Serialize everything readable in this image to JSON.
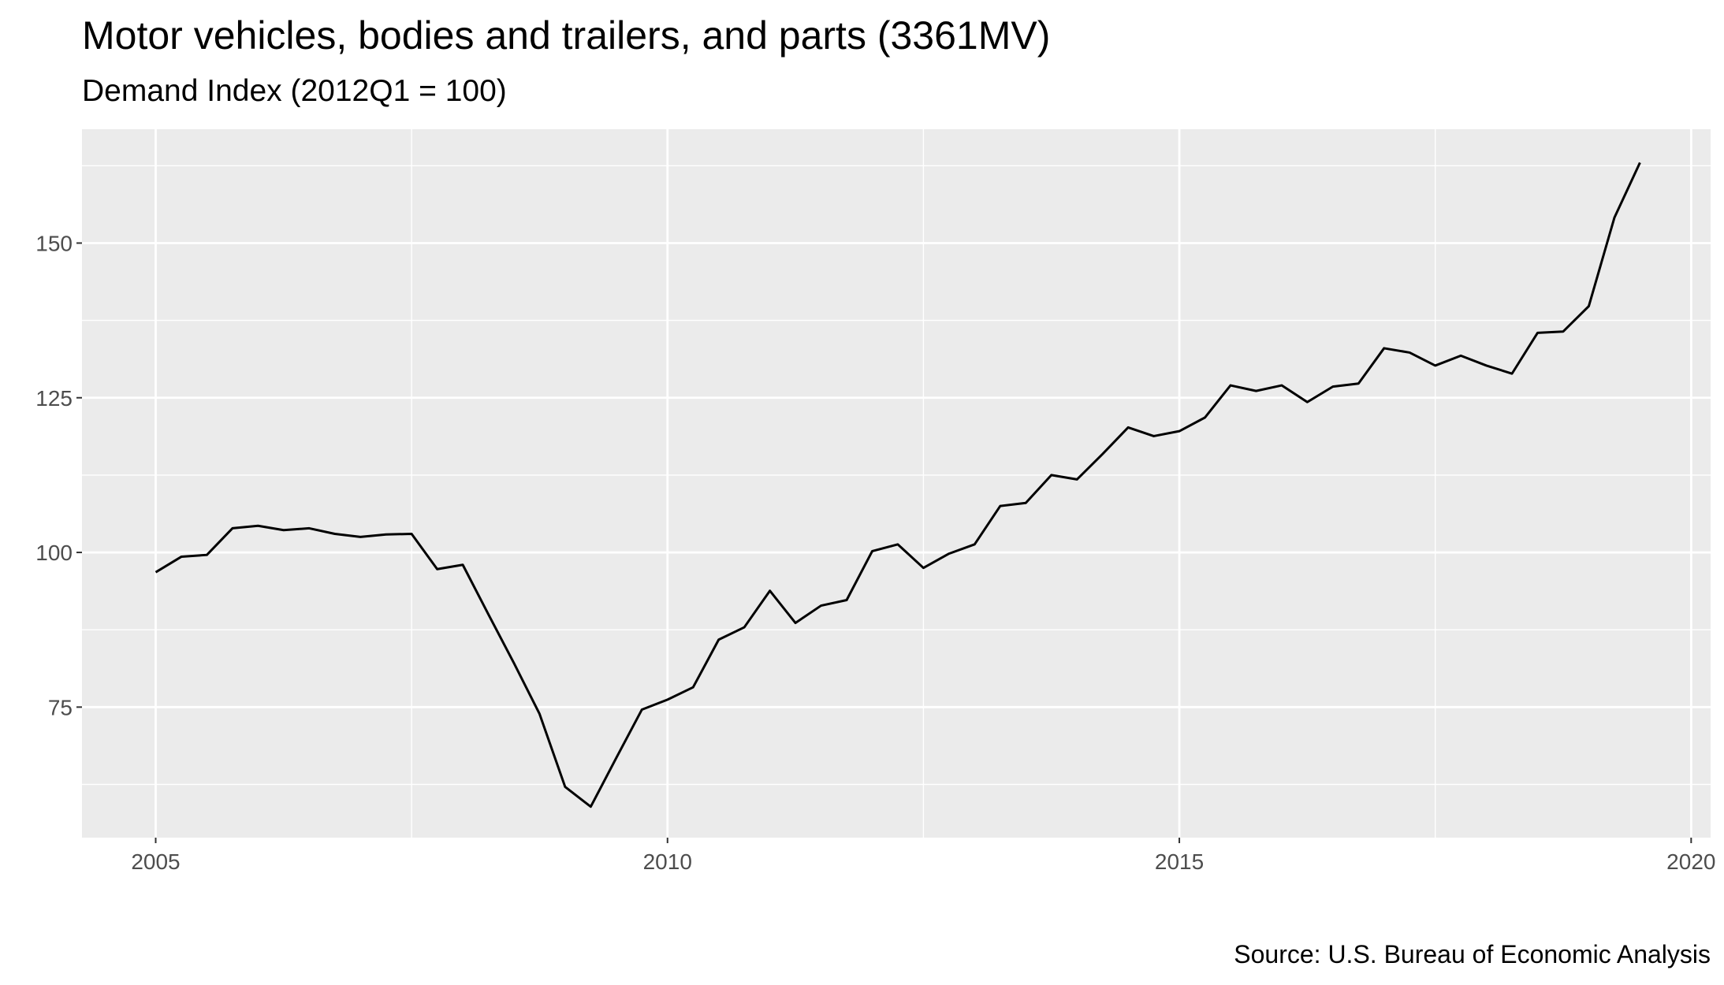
{
  "chart_data": {
    "type": "line",
    "title": "Motor vehicles, bodies and trailers, and parts (3361MV)",
    "subtitle": "Demand Index (2012Q1 = 100)",
    "source": "Source: U.S. Bureau of Economic Analysis",
    "x": [
      2005,
      2005.25,
      2005.5,
      2005.75,
      2006,
      2006.25,
      2006.5,
      2006.75,
      2007,
      2007.25,
      2007.5,
      2007.75,
      2008,
      2008.25,
      2008.5,
      2008.75,
      2009,
      2009.25,
      2009.5,
      2009.75,
      2010,
      2010.25,
      2010.5,
      2010.75,
      2011,
      2011.25,
      2011.5,
      2011.75,
      2012,
      2012.25,
      2012.5,
      2012.75,
      2013,
      2013.25,
      2013.5,
      2013.75,
      2014,
      2014.25,
      2014.5,
      2014.75,
      2015,
      2015.25,
      2015.5,
      2015.75,
      2016,
      2016.25,
      2016.5,
      2016.75,
      2017,
      2017.25,
      2017.5,
      2017.75,
      2018,
      2018.25,
      2018.5,
      2018.75,
      2019,
      2019.25,
      2019.5
    ],
    "series": [
      {
        "color": "#000000",
        "values": [
          96.8,
          99.3,
          99.6,
          103.9,
          104.3,
          103.6,
          103.9,
          103.0,
          102.5,
          102.9,
          103.0,
          97.3,
          98.0,
          90.0,
          82.1,
          73.9,
          62.1,
          58.9,
          66.8,
          74.6,
          76.2,
          78.2,
          85.9,
          87.9,
          93.8,
          88.6,
          91.4,
          92.3,
          100.2,
          101.3,
          97.5,
          99.8,
          101.3,
          107.5,
          108.0,
          112.5,
          111.8,
          115.9,
          120.2,
          118.8,
          119.6,
          121.8,
          127.0,
          126.1,
          127.0,
          124.3,
          126.8,
          127.3,
          133.0,
          132.3,
          130.2,
          131.8,
          130.2,
          128.9,
          135.5,
          135.7,
          139.8,
          154.1,
          163.0
        ]
      }
    ],
    "xlim": [
      2004.28,
      2020.19
    ],
    "xticks": [
      2005,
      2010,
      2015,
      2020
    ],
    "ylim": [
      53.9,
      168.4
    ],
    "yticks": [
      75,
      100,
      125,
      150
    ],
    "grid": true
  }
}
